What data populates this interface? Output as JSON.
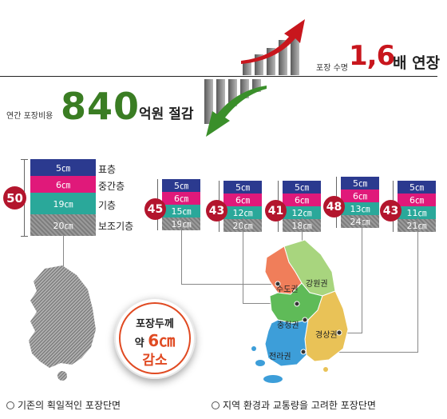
{
  "header": {
    "life_label": "포장 수명",
    "life_value": "1,6",
    "life_suffix": "배 연장",
    "cost_label": "연간 포장비용",
    "cost_value": "840",
    "cost_suffix": "억원 절감"
  },
  "colors": {
    "surface": "#2b3a8f",
    "intermediate": "#e0197a",
    "base": "#2aa89a",
    "subbase": "#8a8a8a",
    "total_circle": "#b3152d",
    "arrow_up": "#c8161d",
    "arrow_down": "#3a8f2a"
  },
  "conventional": {
    "total": "50",
    "layers": [
      {
        "thickness": "5㎝",
        "name": "표층"
      },
      {
        "thickness": "6㎝",
        "name": "중간층"
      },
      {
        "thickness": "19㎝",
        "name": "기층"
      },
      {
        "thickness": "20㎝",
        "name": "보조기층"
      }
    ],
    "caption": "기존의 획일적인 포장단면"
  },
  "regional": [
    {
      "total": "45",
      "layers": [
        "5㎝",
        "6㎝",
        "15㎝",
        "19㎝"
      ]
    },
    {
      "total": "43",
      "layers": [
        "5㎝",
        "6㎝",
        "12㎝",
        "20㎝"
      ]
    },
    {
      "total": "41",
      "layers": [
        "5㎝",
        "6㎝",
        "12㎝",
        "18㎝"
      ]
    },
    {
      "total": "48",
      "layers": [
        "5㎝",
        "6㎝",
        "13㎝",
        "24㎝"
      ]
    },
    {
      "total": "43",
      "layers": [
        "5㎝",
        "6㎝",
        "11㎝",
        "21㎝"
      ]
    }
  ],
  "map": {
    "regions": [
      "수도권",
      "강원권",
      "충청권",
      "경상권",
      "전라권"
    ],
    "region_colors": [
      "#f07e5a",
      "#a8d57e",
      "#5fbb58",
      "#e9c257",
      "#3d9ed9"
    ]
  },
  "badge": {
    "line1": "포장두께",
    "line2_prefix": "약 ",
    "line2_number": "6㎝",
    "line3": "감소"
  },
  "caption_right": "지역 환경과 교통량을 고려한 포장단면"
}
